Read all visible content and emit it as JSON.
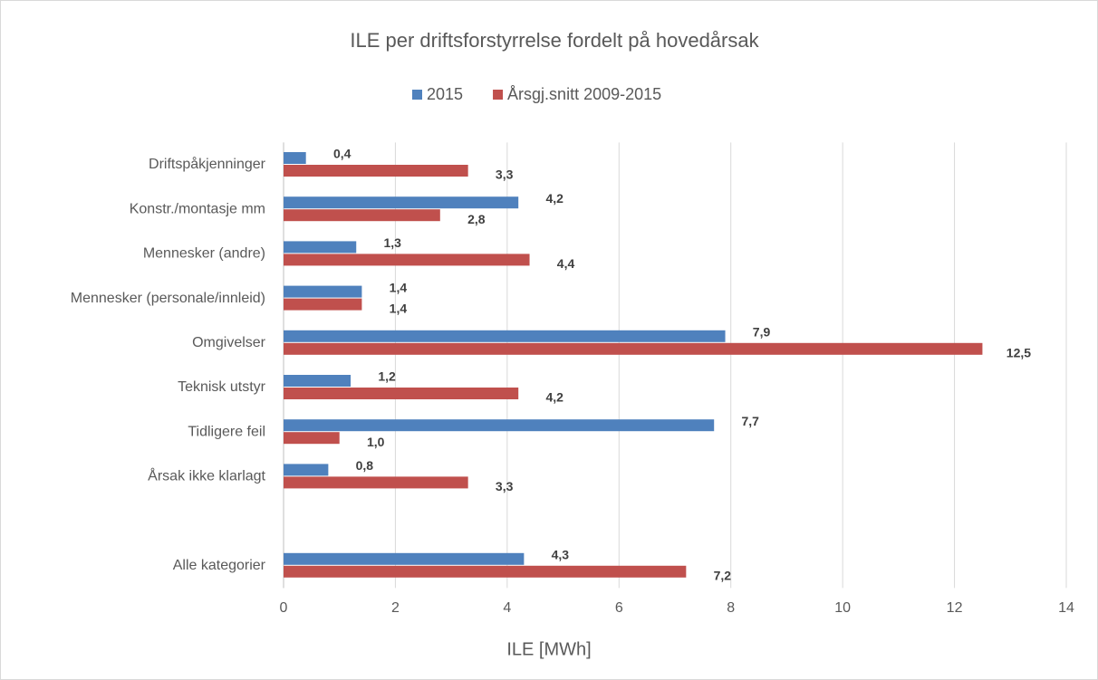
{
  "chart_data": {
    "type": "hbar",
    "title": "ILE per driftsforstyrrelse fordelt på hovedårsak",
    "x_label": "ILE [MWh]",
    "categories": [
      "Driftspåkjenninger",
      "Konstr./montasje mm",
      "Mennesker (andre)",
      "Mennesker (personale/innleid)",
      "Omgivelser",
      "Teknisk utstyr",
      "Tidligere feil",
      "Årsak ikke klarlagt",
      null,
      "Alle kategorier"
    ],
    "series": [
      {
        "name": "2015",
        "color": "#4f81bd",
        "values": [
          0.4,
          4.2,
          1.3,
          1.4,
          7.9,
          1.2,
          7.7,
          0.8,
          null,
          4.3
        ],
        "value_labels": [
          "0,4",
          "4,2",
          "1,3",
          "1,4",
          "7,9",
          "1,2",
          "7,7",
          "0,8",
          null,
          "4,3"
        ]
      },
      {
        "name": "Årsgj.snitt 2009-2015",
        "color": "#c0504d",
        "values": [
          3.3,
          2.8,
          4.4,
          1.4,
          12.5,
          4.2,
          1.0,
          3.3,
          null,
          7.2
        ],
        "value_labels": [
          "3,3",
          "2,8",
          "4,4",
          "1,4",
          "12,5",
          "4,2",
          "1,0",
          "3,3",
          null,
          "7,2"
        ]
      }
    ],
    "xlim": [
      0,
      14
    ],
    "xticks": [
      0,
      2,
      4,
      6,
      8,
      10,
      12,
      14
    ],
    "grid": true,
    "legend": "top"
  }
}
